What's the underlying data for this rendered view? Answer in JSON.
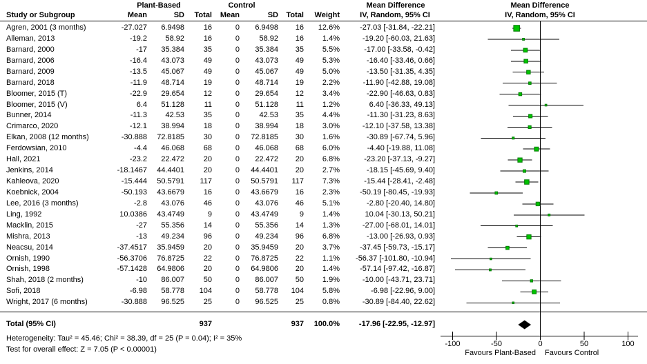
{
  "header": {
    "study_col": "Study or Subgroup",
    "group1": "Plant-Based",
    "group2": "Control",
    "col_mean": "Mean",
    "col_sd": "SD",
    "col_total": "Total",
    "col_weight": "Weight",
    "md_line1": "Mean Difference",
    "md_line2": "IV, Random, 95% CI"
  },
  "footnotes": {
    "heterogeneity": "Heterogeneity: Tau² = 45.46; Chi² = 38.39, df = 25 (P = 0.04); I² = 35%",
    "overall_effect": "Test for overall effect: Z = 7.05 (P < 0.00001)"
  },
  "colors": {
    "marker_fill": "#00c400",
    "marker_stroke": "#007a00",
    "diamond": "#000000",
    "line": "#000000",
    "text": "#000000",
    "background": "#ffffff"
  },
  "chart_data": {
    "type": "scatter",
    "variant": "forest-plot (random-effects meta-analysis)",
    "effect_measure": "Mean Difference",
    "method": "IV, Random, 95% CI",
    "x_axis": {
      "min": -100,
      "max": 100,
      "ticks": [
        -100,
        -50,
        0,
        50,
        100
      ],
      "favours_left": "Favours Plant-Based",
      "favours_right": "Favours Control"
    },
    "studies": [
      {
        "name": "Agren, 2001 (3 months)",
        "plant_mean": "-27.027",
        "plant_sd": "6.9498",
        "plant_total": "16",
        "control_mean": "0",
        "control_sd": "6.9498",
        "control_total": "16",
        "weight": "12.6%",
        "ci_label": "-27.03 [-31.84, -22.21]",
        "md": -27.03,
        "lo": -31.84,
        "hi": -22.21
      },
      {
        "name": "Alleman, 2013",
        "plant_mean": "-19.2",
        "plant_sd": "58.92",
        "plant_total": "16",
        "control_mean": "0",
        "control_sd": "58.92",
        "control_total": "16",
        "weight": "1.4%",
        "ci_label": "-19.20 [-60.03, 21.63]",
        "md": -19.2,
        "lo": -60.03,
        "hi": 21.63
      },
      {
        "name": "Barnard, 2000",
        "plant_mean": "-17",
        "plant_sd": "35.384",
        "plant_total": "35",
        "control_mean": "0",
        "control_sd": "35.384",
        "control_total": "35",
        "weight": "5.5%",
        "ci_label": "-17.00 [-33.58, -0.42]",
        "md": -17.0,
        "lo": -33.58,
        "hi": -0.42
      },
      {
        "name": "Barnard, 2006",
        "plant_mean": "-16.4",
        "plant_sd": "43.073",
        "plant_total": "49",
        "control_mean": "0",
        "control_sd": "43.073",
        "control_total": "49",
        "weight": "5.3%",
        "ci_label": "-16.40 [-33.46, 0.66]",
        "md": -16.4,
        "lo": -33.46,
        "hi": 0.66
      },
      {
        "name": "Barnard, 2009",
        "plant_mean": "-13.5",
        "plant_sd": "45.067",
        "plant_total": "49",
        "control_mean": "0",
        "control_sd": "45.067",
        "control_total": "49",
        "weight": "5.0%",
        "ci_label": "-13.50 [-31.35, 4.35]",
        "md": -13.5,
        "lo": -31.35,
        "hi": 4.35
      },
      {
        "name": "Barnard, 2018",
        "plant_mean": "-11.9",
        "plant_sd": "48.714",
        "plant_total": "19",
        "control_mean": "0",
        "control_sd": "48.714",
        "control_total": "19",
        "weight": "2.2%",
        "ci_label": "-11.90 [-42.88, 19.08]",
        "md": -11.9,
        "lo": -42.88,
        "hi": 19.08
      },
      {
        "name": "Bloomer, 2015 (T)",
        "plant_mean": "-22.9",
        "plant_sd": "29.654",
        "plant_total": "12",
        "control_mean": "0",
        "control_sd": "29.654",
        "control_total": "12",
        "weight": "3.4%",
        "ci_label": "-22.90 [-46.63, 0.83]",
        "md": -22.9,
        "lo": -46.63,
        "hi": 0.83
      },
      {
        "name": "Bloomer, 2015 (V)",
        "plant_mean": "6.4",
        "plant_sd": "51.128",
        "plant_total": "11",
        "control_mean": "0",
        "control_sd": "51.128",
        "control_total": "11",
        "weight": "1.2%",
        "ci_label": "6.40 [-36.33, 49.13]",
        "md": 6.4,
        "lo": -36.33,
        "hi": 49.13
      },
      {
        "name": "Bunner, 2014",
        "plant_mean": "-11.3",
        "plant_sd": "42.53",
        "plant_total": "35",
        "control_mean": "0",
        "control_sd": "42.53",
        "control_total": "35",
        "weight": "4.4%",
        "ci_label": "-11.30 [-31.23, 8.63]",
        "md": -11.3,
        "lo": -31.23,
        "hi": 8.63
      },
      {
        "name": "Crimarco, 2020",
        "plant_mean": "-12.1",
        "plant_sd": "38.994",
        "plant_total": "18",
        "control_mean": "0",
        "control_sd": "38.994",
        "control_total": "18",
        "weight": "3.0%",
        "ci_label": "-12.10 [-37.58, 13.38]",
        "md": -12.1,
        "lo": -37.58,
        "hi": 13.38
      },
      {
        "name": "Elkan, 2008 (12 months)",
        "plant_mean": "-30.888",
        "plant_sd": "72.8185",
        "plant_total": "30",
        "control_mean": "0",
        "control_sd": "72.8185",
        "control_total": "30",
        "weight": "1.6%",
        "ci_label": "-30.89 [-67.74, 5.96]",
        "md": -30.89,
        "lo": -67.74,
        "hi": 5.96
      },
      {
        "name": "Ferdowsian, 2010",
        "plant_mean": "-4.4",
        "plant_sd": "46.068",
        "plant_total": "68",
        "control_mean": "0",
        "control_sd": "46.068",
        "control_total": "68",
        "weight": "6.0%",
        "ci_label": "-4.40 [-19.88, 11.08]",
        "md": -4.4,
        "lo": -19.88,
        "hi": 11.08
      },
      {
        "name": "Hall, 2021",
        "plant_mean": "-23.2",
        "plant_sd": "22.472",
        "plant_total": "20",
        "control_mean": "0",
        "control_sd": "22.472",
        "control_total": "20",
        "weight": "6.8%",
        "ci_label": "-23.20 [-37.13, -9.27]",
        "md": -23.2,
        "lo": -37.13,
        "hi": -9.27
      },
      {
        "name": "Jenkins, 2014",
        "plant_mean": "-18.1467",
        "plant_sd": "44.4401",
        "plant_total": "20",
        "control_mean": "0",
        "control_sd": "44.4401",
        "control_total": "20",
        "weight": "2.7%",
        "ci_label": "-18.15 [-45.69, 9.40]",
        "md": -18.15,
        "lo": -45.69,
        "hi": 9.4
      },
      {
        "name": "Kahleova, 2020",
        "plant_mean": "-15.444",
        "plant_sd": "50.5791",
        "plant_total": "117",
        "control_mean": "0",
        "control_sd": "50.5791",
        "control_total": "117",
        "weight": "7.3%",
        "ci_label": "-15.44 [-28.41, -2.48]",
        "md": -15.44,
        "lo": -28.41,
        "hi": -2.48
      },
      {
        "name": "Koebnick, 2004",
        "plant_mean": "-50.193",
        "plant_sd": "43.6679",
        "plant_total": "16",
        "control_mean": "0",
        "control_sd": "43.6679",
        "control_total": "16",
        "weight": "2.3%",
        "ci_label": "-50.19 [-80.45, -19.93]",
        "md": -50.19,
        "lo": -80.45,
        "hi": -19.93
      },
      {
        "name": "Lee, 2016 (3 months)",
        "plant_mean": "-2.8",
        "plant_sd": "43.076",
        "plant_total": "46",
        "control_mean": "0",
        "control_sd": "43.076",
        "control_total": "46",
        "weight": "5.1%",
        "ci_label": "-2.80 [-20.40, 14.80]",
        "md": -2.8,
        "lo": -20.4,
        "hi": 14.8
      },
      {
        "name": "Ling, 1992",
        "plant_mean": "10.0386",
        "plant_sd": "43.4749",
        "plant_total": "9",
        "control_mean": "0",
        "control_sd": "43.4749",
        "control_total": "9",
        "weight": "1.4%",
        "ci_label": "10.04 [-30.13, 50.21]",
        "md": 10.04,
        "lo": -30.13,
        "hi": 50.21
      },
      {
        "name": "Macklin, 2015",
        "plant_mean": "-27",
        "plant_sd": "55.356",
        "plant_total": "14",
        "control_mean": "0",
        "control_sd": "55.356",
        "control_total": "14",
        "weight": "1.3%",
        "ci_label": "-27.00 [-68.01, 14.01]",
        "md": -27.0,
        "lo": -68.01,
        "hi": 14.01
      },
      {
        "name": "Mishra, 2013",
        "plant_mean": "-13",
        "plant_sd": "49.234",
        "plant_total": "96",
        "control_mean": "0",
        "control_sd": "49.234",
        "control_total": "96",
        "weight": "6.8%",
        "ci_label": "-13.00 [-26.93, 0.93]",
        "md": -13.0,
        "lo": -26.93,
        "hi": 0.93
      },
      {
        "name": "Neacsu, 2014",
        "plant_mean": "-37.4517",
        "plant_sd": "35.9459",
        "plant_total": "20",
        "control_mean": "0",
        "control_sd": "35.9459",
        "control_total": "20",
        "weight": "3.7%",
        "ci_label": "-37.45 [-59.73, -15.17]",
        "md": -37.45,
        "lo": -59.73,
        "hi": -15.17
      },
      {
        "name": "Ornish, 1990",
        "plant_mean": "-56.3706",
        "plant_sd": "76.8725",
        "plant_total": "22",
        "control_mean": "0",
        "control_sd": "76.8725",
        "control_total": "22",
        "weight": "1.1%",
        "ci_label": "-56.37 [-101.80, -10.94]",
        "md": -56.37,
        "lo": -101.8,
        "hi": -10.94
      },
      {
        "name": "Ornish, 1998",
        "plant_mean": "-57.1428",
        "plant_sd": "64.9806",
        "plant_total": "20",
        "control_mean": "0",
        "control_sd": "64.9806",
        "control_total": "20",
        "weight": "1.4%",
        "ci_label": "-57.14 [-97.42, -16.87]",
        "md": -57.14,
        "lo": -97.42,
        "hi": -16.87
      },
      {
        "name": "Shah, 2018 (2 months)",
        "plant_mean": "-10",
        "plant_sd": "86.007",
        "plant_total": "50",
        "control_mean": "0",
        "control_sd": "86.007",
        "control_total": "50",
        "weight": "1.9%",
        "ci_label": "-10.00 [-43.71, 23.71]",
        "md": -10.0,
        "lo": -43.71,
        "hi": 23.71
      },
      {
        "name": "Sofi, 2018",
        "plant_mean": "-6.98",
        "plant_sd": "58.778",
        "plant_total": "104",
        "control_mean": "0",
        "control_sd": "58.778",
        "control_total": "104",
        "weight": "5.8%",
        "ci_label": "-6.98 [-22.96, 9.00]",
        "md": -6.98,
        "lo": -22.96,
        "hi": 9.0
      },
      {
        "name": "Wright, 2017 (6 months)",
        "plant_mean": "-30.888",
        "plant_sd": "96.525",
        "plant_total": "25",
        "control_mean": "0",
        "control_sd": "96.525",
        "control_total": "25",
        "weight": "0.8%",
        "ci_label": "-30.89 [-84.40, 22.62]",
        "md": -30.89,
        "lo": -84.4,
        "hi": 22.62
      }
    ],
    "total": {
      "label": "Total (95% CI)",
      "plant_total": "937",
      "control_total": "937",
      "weight": "100.0%",
      "ci_label": "-17.96 [-22.95, -12.97]",
      "md": -17.96,
      "lo": -22.95,
      "hi": -12.97
    }
  }
}
